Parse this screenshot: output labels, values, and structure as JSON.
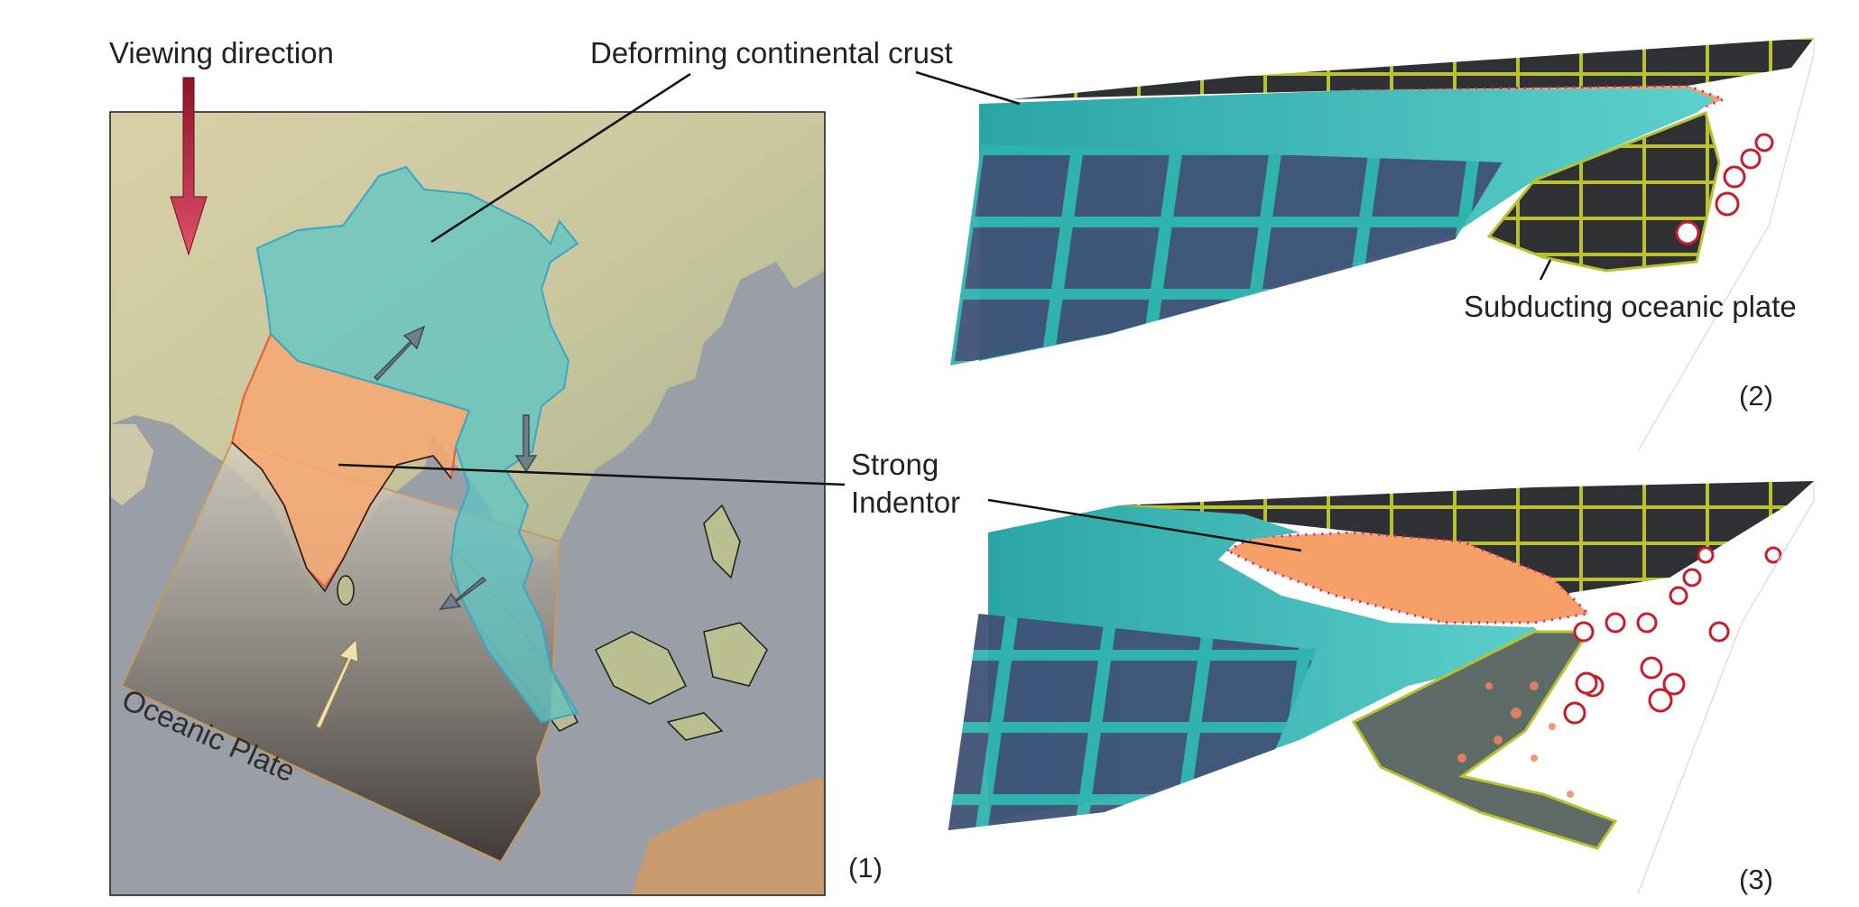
{
  "labels": {
    "viewing_direction": "Viewing direction",
    "deforming_crust": "Deforming continental crust",
    "subducting_plate": "Subducting oceanic plate",
    "strong": "Strong",
    "indentor": "Indentor",
    "oceanic_plate": "Oceanic Plate"
  },
  "panels": {
    "p1": "(1)",
    "p2": "(2)",
    "p3": "(3)"
  },
  "colors": {
    "crust": "#39b6b4",
    "indentor": "#f6a067",
    "ocean_floor": "#3d5275",
    "oceanic_plate": "#8a7f70",
    "subducting_grid": "#b8c230",
    "arrow": "#c0283f"
  }
}
